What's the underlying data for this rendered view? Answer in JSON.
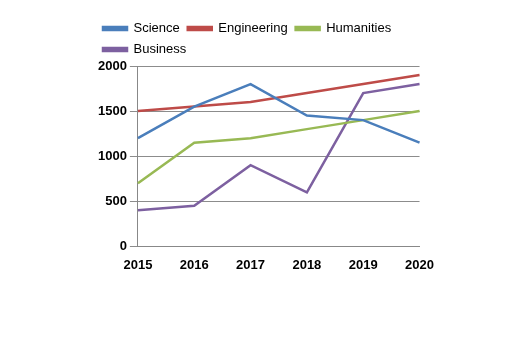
{
  "chart_data": {
    "type": "line",
    "categories": [
      "2015",
      "2016",
      "2017",
      "2018",
      "2019",
      "2020"
    ],
    "series": [
      {
        "name": "Science",
        "color": "#4a7ebb",
        "values": [
          1200,
          1550,
          1800,
          1450,
          1400,
          1150
        ]
      },
      {
        "name": "Engineering",
        "color": "#be4b48",
        "values": [
          1500,
          1550,
          1600,
          1700,
          1800,
          1900
        ]
      },
      {
        "name": "Humanities",
        "color": "#98b954",
        "values": [
          700,
          1150,
          1200,
          1300,
          1400,
          1500
        ]
      },
      {
        "name": "Business",
        "color": "#7d60a0",
        "values": [
          400,
          450,
          900,
          600,
          1700,
          1800
        ]
      }
    ],
    "ylim": [
      0,
      2000
    ],
    "yticks": [
      0,
      500,
      1000,
      1500,
      2000
    ],
    "grid": true,
    "legend": "top"
  }
}
